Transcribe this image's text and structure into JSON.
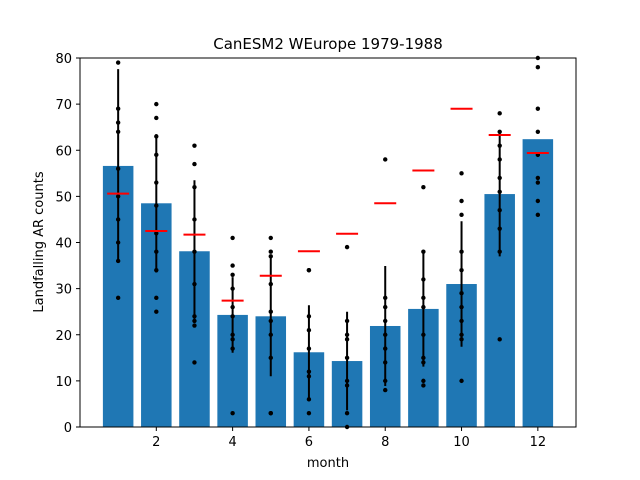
{
  "chart_data": {
    "type": "bar",
    "title": "CanESM2 WEurope 1979-1988",
    "xlabel": "month",
    "ylabel": "Landfalling AR counts",
    "xlim": [
      0,
      13
    ],
    "ylim": [
      0,
      80
    ],
    "xticks": [
      2,
      4,
      6,
      8,
      10,
      12
    ],
    "yticks": [
      0,
      10,
      20,
      30,
      40,
      50,
      60,
      70,
      80
    ],
    "colors": {
      "bar": "#1f77b4",
      "marker": "#ff0000",
      "points": "#000000",
      "errorbar": "#000000",
      "axes": "#000000"
    },
    "series": [
      {
        "name": "mean",
        "type": "bar",
        "categories": [
          1,
          2,
          3,
          4,
          5,
          6,
          7,
          8,
          9,
          10,
          11,
          12
        ],
        "values": [
          56.6,
          48.5,
          38.1,
          24.3,
          24.0,
          16.2,
          14.3,
          21.9,
          25.6,
          31.0,
          50.5,
          62.4
        ]
      },
      {
        "name": "std",
        "type": "errorbar",
        "values": [
          21.0,
          15.0,
          15.4,
          8.2,
          13.0,
          10.2,
          10.7,
          13.0,
          12.5,
          13.6,
          13.5,
          0
        ]
      },
      {
        "name": "reference",
        "type": "marker",
        "values": [
          50.6,
          42.5,
          41.7,
          27.4,
          32.8,
          38.1,
          41.9,
          48.5,
          55.6,
          69.0,
          63.3,
          59.4
        ]
      },
      {
        "name": "yearly",
        "type": "scatter",
        "values": [
          [
            79,
            69,
            66,
            64,
            56,
            50,
            45,
            40,
            36,
            28
          ],
          [
            70,
            67,
            63,
            59,
            53,
            48,
            42,
            38,
            34,
            28,
            25
          ],
          [
            61,
            57,
            52,
            45,
            38,
            31,
            24,
            23,
            22,
            14
          ],
          [
            41,
            35,
            33,
            30,
            26,
            24,
            20,
            19,
            17,
            3
          ],
          [
            41,
            38,
            37,
            31,
            25,
            23,
            20,
            15,
            3,
            3
          ],
          [
            34,
            34,
            24,
            21,
            17,
            12,
            11,
            6,
            3
          ],
          [
            39,
            23,
            20,
            19,
            15,
            10,
            9,
            3,
            0
          ],
          [
            58,
            28,
            26,
            23,
            20,
            17,
            14,
            10,
            8
          ],
          [
            52,
            38,
            32,
            28,
            26,
            20,
            15,
            14,
            10,
            9
          ],
          [
            55,
            49,
            46,
            38,
            34,
            29,
            26,
            23,
            20,
            19,
            10
          ],
          [
            68,
            64,
            61,
            58,
            54,
            51,
            47,
            43,
            38,
            19
          ],
          [
            80,
            78,
            69,
            64,
            59,
            54,
            53,
            49,
            46
          ]
        ]
      }
    ]
  }
}
